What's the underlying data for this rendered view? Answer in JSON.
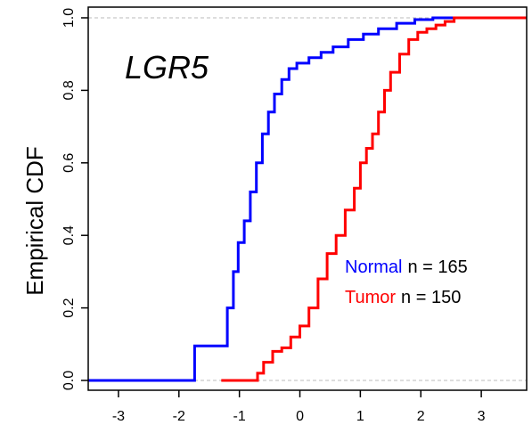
{
  "chart_data": {
    "type": "line",
    "title": "LGR5",
    "xlabel": "",
    "ylabel": "Empirical CDF",
    "xlim": [
      -3.5,
      3.75
    ],
    "ylim": [
      0,
      1
    ],
    "x_ticks": [
      "-3",
      "-2",
      "-1",
      "0",
      "1",
      "2",
      "3"
    ],
    "y_ticks": [
      "0.0",
      "0.2",
      "0.4",
      "0.6",
      "0.8",
      "1.0"
    ],
    "reference_lines": [
      0,
      1
    ],
    "grid": false,
    "legend_placement": "center-right",
    "colors": {
      "Normal": "#0000ff",
      "Tumor": "#ff0000",
      "reference": "#bbbbbb"
    },
    "series": [
      {
        "name": "Normal",
        "n_label": "n = 165",
        "color": "#0000ff",
        "x": [
          -3.5,
          -1.74,
          -1.74,
          -1.31,
          -1.2,
          -1.1,
          -1.02,
          -0.92,
          -0.82,
          -0.72,
          -0.62,
          -0.52,
          -0.42,
          -0.3,
          -0.18,
          -0.05,
          0.15,
          0.35,
          0.55,
          0.8,
          1.05,
          1.3,
          1.6,
          1.9,
          2.2,
          2.5,
          3.75
        ],
        "y": [
          0,
          0,
          0.095,
          0.095,
          0.2,
          0.3,
          0.38,
          0.44,
          0.52,
          0.6,
          0.68,
          0.74,
          0.79,
          0.83,
          0.86,
          0.875,
          0.89,
          0.905,
          0.92,
          0.94,
          0.955,
          0.97,
          0.985,
          0.995,
          1.0,
          1.0,
          1.0
        ]
      },
      {
        "name": "Tumor",
        "n_label": "n = 150",
        "color": "#ff0000",
        "x": [
          -1.3,
          -0.8,
          -0.7,
          -0.6,
          -0.45,
          -0.3,
          -0.15,
          0,
          0.15,
          0.3,
          0.45,
          0.6,
          0.75,
          0.9,
          1.0,
          1.1,
          1.2,
          1.3,
          1.4,
          1.5,
          1.65,
          1.8,
          1.95,
          2.1,
          2.25,
          2.4,
          2.55,
          3.0,
          3.75
        ],
        "y": [
          0,
          0,
          0.02,
          0.05,
          0.08,
          0.09,
          0.12,
          0.15,
          0.2,
          0.28,
          0.35,
          0.4,
          0.47,
          0.53,
          0.6,
          0.64,
          0.68,
          0.74,
          0.8,
          0.85,
          0.9,
          0.94,
          0.96,
          0.97,
          0.98,
          0.99,
          1.0,
          1.0,
          1.0
        ]
      }
    ]
  }
}
